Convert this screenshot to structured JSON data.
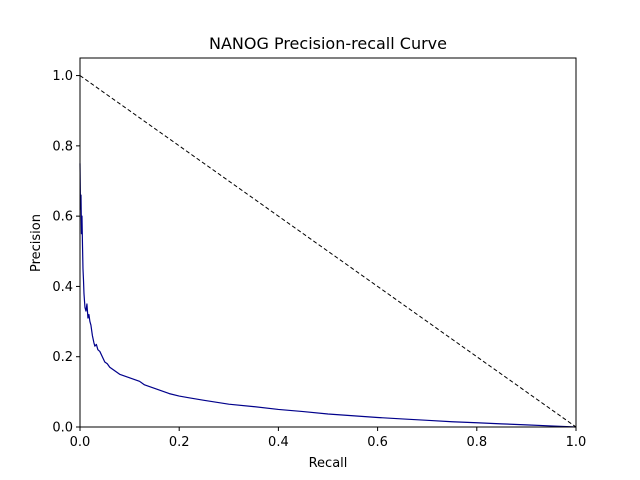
{
  "chart_data": {
    "type": "line",
    "title": "NANOG Precision-recall Curve",
    "xlabel": "Recall",
    "ylabel": "Precision",
    "xlim": [
      0.0,
      1.0
    ],
    "ylim": [
      0.0,
      1.05
    ],
    "xticks": [
      "0.0",
      "0.2",
      "0.4",
      "0.6",
      "0.8",
      "1.0"
    ],
    "yticks": [
      "0.0",
      "0.2",
      "0.4",
      "0.6",
      "0.8",
      "1.0"
    ],
    "grid": false,
    "series": [
      {
        "color": "#00008b",
        "style": "solid",
        "x": [
          0.0,
          0.001,
          0.002,
          0.003,
          0.004,
          0.005,
          0.006,
          0.007,
          0.008,
          0.009,
          0.01,
          0.012,
          0.014,
          0.016,
          0.018,
          0.02,
          0.022,
          0.025,
          0.028,
          0.03,
          0.033,
          0.036,
          0.04,
          0.045,
          0.05,
          0.055,
          0.06,
          0.07,
          0.08,
          0.09,
          0.1,
          0.11,
          0.12,
          0.13,
          0.14,
          0.15,
          0.16,
          0.18,
          0.2,
          0.22,
          0.25,
          0.3,
          0.35,
          0.4,
          0.45,
          0.5,
          0.55,
          0.6,
          0.65,
          0.7,
          0.75,
          0.8,
          0.85,
          0.9,
          0.95,
          1.0
        ],
        "y": [
          0.75,
          0.62,
          0.66,
          0.55,
          0.6,
          0.52,
          0.45,
          0.42,
          0.38,
          0.36,
          0.34,
          0.33,
          0.35,
          0.31,
          0.32,
          0.3,
          0.29,
          0.26,
          0.24,
          0.23,
          0.235,
          0.22,
          0.215,
          0.2,
          0.185,
          0.18,
          0.17,
          0.16,
          0.15,
          0.145,
          0.14,
          0.135,
          0.13,
          0.12,
          0.115,
          0.11,
          0.105,
          0.095,
          0.088,
          0.083,
          0.076,
          0.065,
          0.058,
          0.05,
          0.044,
          0.037,
          0.032,
          0.027,
          0.023,
          0.019,
          0.015,
          0.012,
          0.009,
          0.006,
          0.003,
          0.0
        ]
      },
      {
        "color": "#000000",
        "style": "dashed",
        "x": [
          0.0,
          1.0
        ],
        "y": [
          1.0,
          0.0
        ]
      }
    ]
  }
}
